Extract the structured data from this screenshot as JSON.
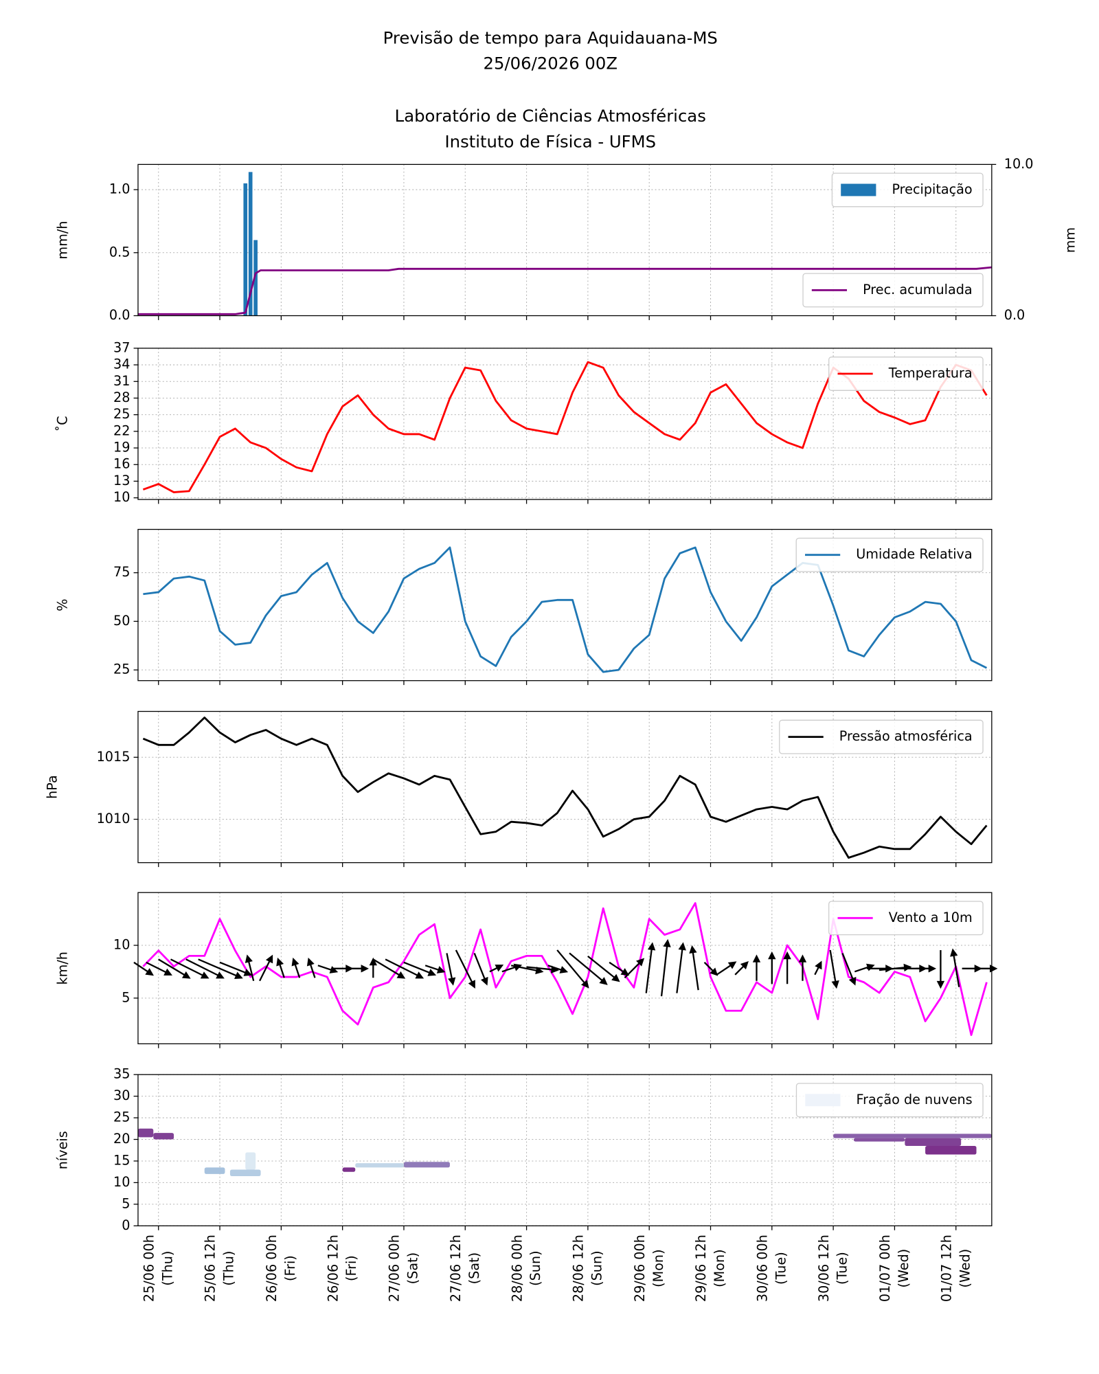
{
  "header": {
    "title": "Previsão de tempo para Aquidauana-MS",
    "subtitle": "25/06/2026 00Z",
    "institution": "Laboratório de Ciências Atmosféricas",
    "department": "Instituto de Física - UFMS"
  },
  "xlim": [
    -4,
    163
  ],
  "xticks": [
    {
      "value": 0,
      "label": "25/06 00h",
      "day": "(Thu)"
    },
    {
      "value": 12,
      "label": "25/06 12h",
      "day": "(Thu)"
    },
    {
      "value": 24,
      "label": "26/06 00h",
      "day": "(Fri)"
    },
    {
      "value": 36,
      "label": "26/06 12h",
      "day": "(Fri)"
    },
    {
      "value": 48,
      "label": "27/06 00h",
      "day": "(Sat)"
    },
    {
      "value": 60,
      "label": "27/06 12h",
      "day": "(Sat)"
    },
    {
      "value": 72,
      "label": "28/06 00h",
      "day": "(Sun)"
    },
    {
      "value": 84,
      "label": "28/06 12h",
      "day": "(Sun)"
    },
    {
      "value": 96,
      "label": "29/06 00h",
      "day": "(Mon)"
    },
    {
      "value": 108,
      "label": "29/06 12h",
      "day": "(Mon)"
    },
    {
      "value": 120,
      "label": "30/06 00h",
      "day": "(Tue)"
    },
    {
      "value": 132,
      "label": "30/06 12h",
      "day": "(Tue)"
    },
    {
      "value": 144,
      "label": "01/07 00h",
      "day": "(Wed)"
    },
    {
      "value": 156,
      "label": "01/07 12h",
      "day": "(Wed)"
    }
  ],
  "x": [
    -3,
    0,
    3,
    6,
    9,
    12,
    15,
    18,
    21,
    24,
    27,
    30,
    33,
    36,
    39,
    42,
    45,
    48,
    51,
    54,
    57,
    60,
    63,
    66,
    69,
    72,
    75,
    78,
    81,
    84,
    87,
    90,
    93,
    96,
    99,
    102,
    105,
    108,
    111,
    114,
    117,
    120,
    123,
    126,
    129,
    132,
    135,
    138,
    141,
    144,
    147,
    150,
    153,
    156,
    159,
    162
  ],
  "chart_data": [
    {
      "type": "bar",
      "ylabel": "mm/h",
      "y2label": "mm",
      "ylim": [
        0,
        1.2
      ],
      "yticks": [
        {
          "value": 0,
          "label": "0.0"
        },
        {
          "value": 0.5,
          "label": "0.5"
        },
        {
          "value": 1,
          "label": "1.0"
        }
      ],
      "y2lim": [
        0,
        10
      ],
      "y2ticks": [
        {
          "value": 0,
          "label": "0.0"
        },
        {
          "value": 10,
          "label": "10.0"
        }
      ],
      "series": [
        {
          "name": "Precipitação",
          "type": "bar",
          "color": "#1f77b4",
          "legend": "upper right",
          "x": [
            17,
            18,
            19
          ],
          "values": [
            1.05,
            1.14,
            0.6
          ]
        },
        {
          "name": "Prec. acumulada",
          "type": "line",
          "color": "#800080",
          "axis": "y2",
          "legend": "lower right",
          "x": [
            -4,
            15,
            16,
            17,
            18,
            19,
            20,
            43,
            45,
            47,
            160,
            163
          ],
          "values": [
            0.1,
            0.1,
            0.15,
            0.2,
            1.5,
            2.8,
            3.0,
            3.0,
            3.0,
            3.1,
            3.1,
            3.2
          ]
        }
      ]
    },
    {
      "type": "line",
      "ylabel": "˚C",
      "ylim": [
        9.7,
        37
      ],
      "yticks": [
        10,
        13,
        16,
        19,
        22,
        25,
        28,
        31,
        34,
        37
      ],
      "series": [
        {
          "name": "Temperatura",
          "color": "#ff0000",
          "legend": "upper right",
          "values": [
            11.5,
            12.5,
            11,
            11.2,
            16,
            21,
            22.5,
            20,
            19,
            17,
            15.5,
            14.8,
            21.5,
            26.5,
            28.5,
            25,
            22.5,
            21.5,
            21.5,
            20.5,
            28,
            33.5,
            33,
            27.5,
            24,
            22.5,
            22,
            21.5,
            29,
            34.5,
            33.5,
            28.5,
            25.5,
            23.5,
            21.5,
            20.5,
            23.5,
            29,
            30.5,
            27,
            23.5,
            21.5,
            20,
            19,
            27,
            33.5,
            31.5,
            27.5,
            25.5,
            24.5,
            23.3,
            24,
            30,
            34,
            33,
            28.5
          ]
        }
      ]
    },
    {
      "type": "line",
      "ylabel": "%",
      "ylim": [
        19.5,
        97.3
      ],
      "yticks": [
        25,
        50,
        75
      ],
      "series": [
        {
          "name": "Umidade Relativa",
          "color": "#1f77b4",
          "legend": "upper right",
          "values": [
            64,
            65,
            72,
            73,
            71,
            45,
            38,
            39,
            53,
            63,
            65,
            74,
            80,
            62,
            50,
            44,
            55,
            72,
            77,
            80,
            88,
            50,
            32,
            27,
            42,
            50,
            60,
            61,
            61,
            33,
            24,
            25,
            36,
            43,
            72,
            85,
            88,
            65,
            50,
            40,
            52,
            68,
            74,
            80,
            79,
            58,
            35,
            32,
            43,
            52,
            55,
            60,
            59,
            50,
            30,
            26
          ]
        }
      ]
    },
    {
      "type": "line",
      "ylabel": "hPa",
      "ylim": [
        1006.5,
        1018.7
      ],
      "yticks": [
        1010,
        1015
      ],
      "series": [
        {
          "name": "Pressão atmosférica",
          "color": "#000000",
          "legend": "upper right",
          "values": [
            1016.5,
            1016,
            1016,
            1017,
            1018.2,
            1017,
            1016.2,
            1016.8,
            1017.2,
            1016.5,
            1016,
            1016.5,
            1016,
            1013.5,
            1012.2,
            1013,
            1013.7,
            1013.3,
            1012.8,
            1013.5,
            1013.2,
            1011,
            1008.8,
            1009,
            1009.8,
            1009.7,
            1009.5,
            1010.5,
            1012.3,
            1010.8,
            1008.6,
            1009.2,
            1010,
            1010.2,
            1011.5,
            1013.5,
            1012.8,
            1010.2,
            1009.8,
            1010.3,
            1010.8,
            1011,
            1010.8,
            1011.5,
            1011.8,
            1009,
            1006.9,
            1007.3,
            1007.8,
            1007.6,
            1007.6,
            1008.8,
            1010.2,
            1009,
            1008,
            1009.5
          ]
        }
      ]
    },
    {
      "type": "line",
      "ylabel": "km/h",
      "ylim": [
        0.67,
        15
      ],
      "yticks": [
        5,
        10
      ],
      "series": [
        {
          "name": "Vento a 10m",
          "color": "#ff00ff",
          "legend": "upper right",
          "values": [
            8,
            9.5,
            8,
            9,
            9,
            12.5,
            9.5,
            7,
            8,
            7,
            7,
            7.5,
            7,
            3.8,
            2.5,
            6,
            6.5,
            8.5,
            11,
            12,
            5,
            7,
            11.5,
            6,
            8.5,
            9,
            9,
            6.5,
            3.5,
            7,
            13.5,
            8,
            6,
            12.5,
            11,
            11.5,
            14,
            7,
            3.8,
            3.8,
            6.5,
            5.5,
            10,
            8,
            3,
            12.5,
            7,
            6.5,
            5.5,
            7.5,
            7,
            2.8,
            5,
            8,
            1.5,
            6.5
          ]
        }
      ],
      "arrows": {
        "y": 7.8,
        "u": [
          3,
          4,
          5,
          6,
          6,
          7,
          5,
          -1,
          2,
          -1,
          -1,
          -1,
          3,
          3,
          3,
          0,
          5,
          6,
          5,
          3,
          1,
          3,
          2,
          2,
          3,
          5,
          5,
          3,
          5,
          6,
          5,
          3,
          3,
          1,
          1,
          1,
          -1,
          2,
          3,
          2,
          0,
          0,
          0,
          0,
          1,
          1,
          2,
          3,
          4,
          5,
          5,
          3,
          0,
          -1,
          3,
          3
        ],
        "v": [
          -2,
          -2,
          -3,
          -3,
          -3,
          -3,
          -2,
          4,
          4,
          3,
          3,
          3,
          -1,
          0,
          0,
          3,
          -3,
          -3,
          -2,
          -1,
          -5,
          -6,
          -5,
          1,
          1,
          -1,
          -0.5,
          -1,
          -6,
          -5,
          -4,
          -2,
          3,
          8,
          9,
          8,
          7,
          -2,
          2,
          2,
          4,
          5,
          5,
          4,
          2,
          -6,
          -5,
          1,
          0,
          0.5,
          0,
          0,
          -6,
          6,
          0,
          0
        ]
      }
    },
    {
      "type": "heatmap",
      "ylabel": "níveis",
      "ylim": [
        0,
        35
      ],
      "yticks": [
        0,
        5,
        10,
        15,
        20,
        25,
        30,
        35
      ],
      "series": [
        {
          "name": "Fração de nuvens",
          "color": "#eef3fa",
          "legend": "upper right"
        }
      ],
      "cells": [
        {
          "x": [
            -4,
            -1
          ],
          "y": [
            20.5,
            22.5
          ],
          "value": 0.8
        },
        {
          "x": [
            -1,
            3
          ],
          "y": [
            20,
            21.5
          ],
          "value": 0.8
        },
        {
          "x": [
            9,
            13
          ],
          "y": [
            12,
            13.5
          ],
          "value": 0.3
        },
        {
          "x": [
            14,
            20
          ],
          "y": [
            11.5,
            13
          ],
          "value": 0.25
        },
        {
          "x": [
            17,
            19
          ],
          "y": [
            13,
            17
          ],
          "value": 0.1
        },
        {
          "x": [
            36,
            38.5
          ],
          "y": [
            12.5,
            13.5
          ],
          "value": 0.85
        },
        {
          "x": [
            38.5,
            48
          ],
          "y": [
            13.5,
            14.5
          ],
          "value": 0.2
        },
        {
          "x": [
            48,
            57
          ],
          "y": [
            13.5,
            14.8
          ],
          "value": 0.6
        },
        {
          "x": [
            132,
            163
          ],
          "y": [
            20.3,
            21.3
          ],
          "value": 0.7
        },
        {
          "x": [
            136,
            146
          ],
          "y": [
            19.5,
            20.3
          ],
          "value": 0.75
        },
        {
          "x": [
            146,
            157
          ],
          "y": [
            18.5,
            20.3
          ],
          "value": 0.8
        },
        {
          "x": [
            150,
            160
          ],
          "y": [
            16.5,
            18.5
          ],
          "value": 0.85
        }
      ]
    }
  ]
}
